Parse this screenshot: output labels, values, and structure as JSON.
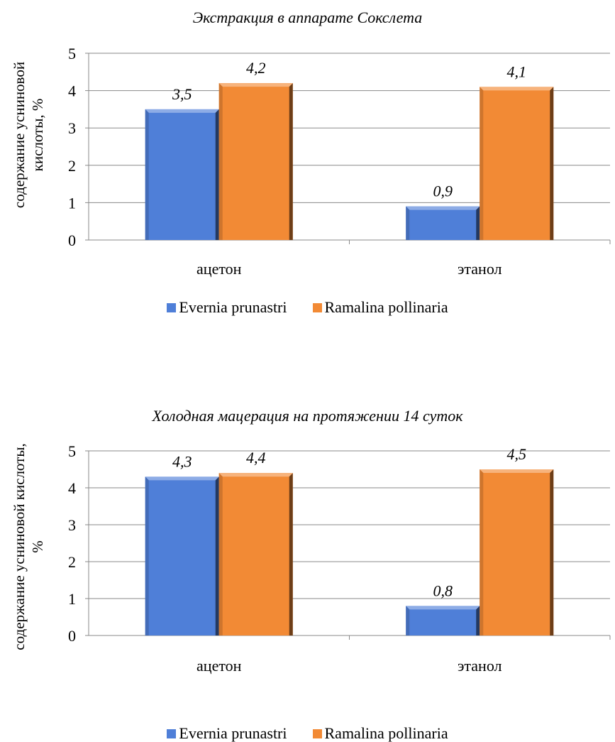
{
  "chart_data": [
    {
      "type": "bar",
      "title": "Экстракция в аппарате Сокслета",
      "ylabel": [
        "содержание усниновой",
        "кислоты, %"
      ],
      "xlabel": "",
      "categories": [
        "ацетон",
        "этанол"
      ],
      "series": [
        {
          "name": "Evernia prunastri",
          "values": [
            3.5,
            0.9
          ],
          "labels": [
            "3,5",
            "0,9"
          ],
          "color": "#4f7fd8"
        },
        {
          "name": "Ramalina pollinaria",
          "values": [
            4.2,
            4.1
          ],
          "labels": [
            "4,2",
            "4,1"
          ],
          "color": "#f28a35"
        }
      ],
      "yticks": [
        "0",
        "1",
        "2",
        "3",
        "4",
        "5"
      ],
      "ylim": [
        0,
        5
      ],
      "grid": true,
      "legend": "bottom"
    },
    {
      "type": "bar",
      "title": "Холодная мацерация на протяжении 14 суток",
      "ylabel": [
        "содержание усниновой кислоты,",
        "%"
      ],
      "xlabel": "",
      "categories": [
        "ацетон",
        "этанол"
      ],
      "series": [
        {
          "name": "Evernia prunastri",
          "values": [
            4.3,
            0.8
          ],
          "labels": [
            "4,3",
            "0,8"
          ],
          "color": "#4f7fd8"
        },
        {
          "name": "Ramalina pollinaria",
          "values": [
            4.4,
            4.5
          ],
          "labels": [
            "4,4",
            "4,5"
          ],
          "color": "#f28a35"
        }
      ],
      "yticks": [
        "0",
        "1",
        "2",
        "3",
        "4",
        "5"
      ],
      "ylim": [
        0,
        5
      ],
      "grid": true,
      "legend": "bottom"
    }
  ]
}
